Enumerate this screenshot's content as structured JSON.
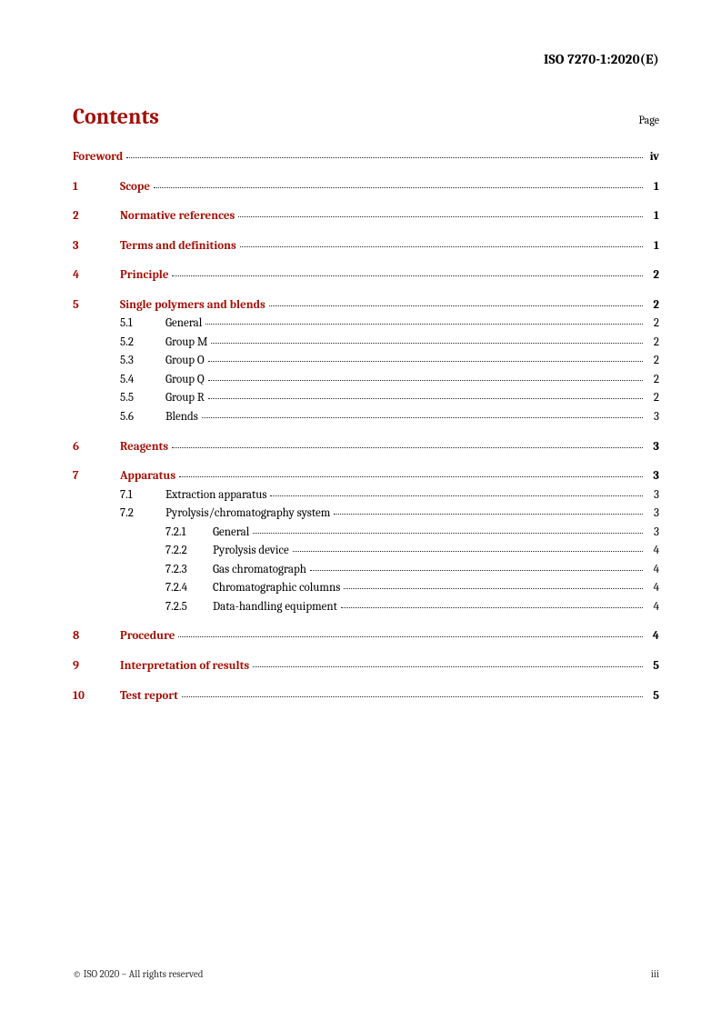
{
  "doc_id": "ISO 7270-1:2020(E)",
  "title": "Contents",
  "page_label": "Page",
  "footer_left": "© ISO 2020 – All rights reserved",
  "footer_right": "iii",
  "toc": [
    {
      "level": 0,
      "num": "",
      "txt": "Foreword",
      "pg": "iv",
      "bold": true,
      "space_after": true
    },
    {
      "level": 1,
      "num": "1",
      "txt": "Scope",
      "pg": "1",
      "bold": true,
      "space_after": true
    },
    {
      "level": 1,
      "num": "2",
      "txt": "Normative references",
      "pg": "1",
      "bold": true,
      "space_after": true
    },
    {
      "level": 1,
      "num": "3",
      "txt": "Terms and definitions",
      "pg": "1",
      "bold": true,
      "space_after": true
    },
    {
      "level": 1,
      "num": "4",
      "txt": "Principle",
      "pg": "2",
      "bold": true,
      "space_after": true
    },
    {
      "level": 1,
      "num": "5",
      "txt": "Single polymers and blends",
      "pg": "2",
      "bold": true
    },
    {
      "level": 2,
      "num": "5.1",
      "txt": "General",
      "pg": "2"
    },
    {
      "level": 2,
      "num": "5.2",
      "txt": "Group M",
      "pg": "2"
    },
    {
      "level": 2,
      "num": "5.3",
      "txt": "Group O",
      "pg": "2"
    },
    {
      "level": 2,
      "num": "5.4",
      "txt": "Group Q",
      "pg": "2"
    },
    {
      "level": 2,
      "num": "5.5",
      "txt": "Group R",
      "pg": "2"
    },
    {
      "level": 2,
      "num": "5.6",
      "txt": "Blends",
      "pg": "3",
      "space_after": true
    },
    {
      "level": 1,
      "num": "6",
      "txt": "Reagents",
      "pg": "3",
      "bold": true,
      "space_after": true
    },
    {
      "level": 1,
      "num": "7",
      "txt": "Apparatus",
      "pg": "3",
      "bold": true
    },
    {
      "level": 2,
      "num": "7.1",
      "txt": "Extraction apparatus",
      "pg": "3"
    },
    {
      "level": 2,
      "num": "7.2",
      "txt": "Pyrolysis/chromatography system",
      "pg": "3"
    },
    {
      "level": 3,
      "num": "7.2.1",
      "txt": "General",
      "pg": "3"
    },
    {
      "level": 3,
      "num": "7.2.2",
      "txt": "Pyrolysis device",
      "pg": "4"
    },
    {
      "level": 3,
      "num": "7.2.3",
      "txt": "Gas chromatograph",
      "pg": "4"
    },
    {
      "level": 3,
      "num": "7.2.4",
      "txt": "Chromatographic columns",
      "pg": "4"
    },
    {
      "level": 3,
      "num": "7.2.5",
      "txt": "Data-handling equipment",
      "pg": "4",
      "space_after": true
    },
    {
      "level": 1,
      "num": "8",
      "txt": "Procedure",
      "pg": "4",
      "bold": true,
      "space_after": true
    },
    {
      "level": 1,
      "num": "9",
      "txt": "Interpretation of results",
      "pg": "5",
      "bold": true,
      "space_after": true
    },
    {
      "level": 1,
      "num": "10",
      "txt": "Test report",
      "pg": "5",
      "bold": true
    }
  ]
}
